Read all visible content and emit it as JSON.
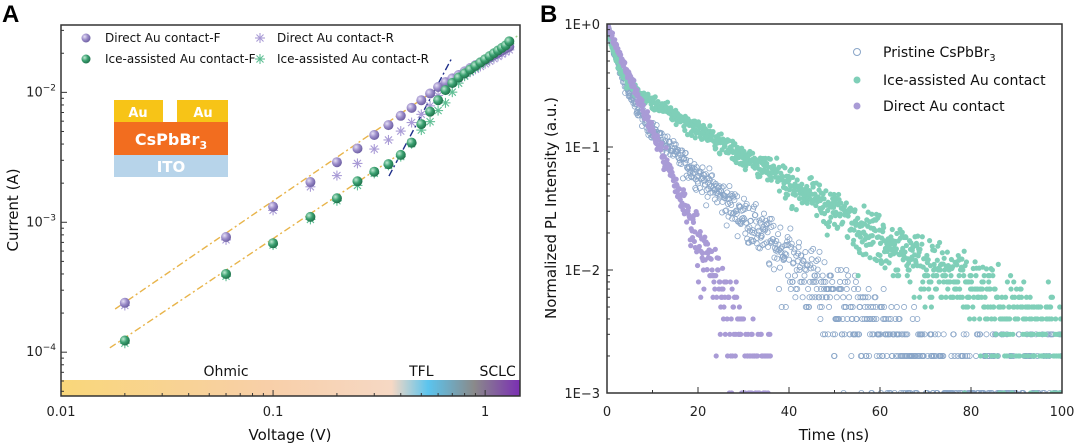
{
  "chart_data": [
    {
      "panel": "A",
      "type": "scatter",
      "xscale": "log",
      "yscale": "log",
      "xlabel": "Voltage (V)",
      "ylabel": "Current (A)",
      "xlim": [
        0.01,
        1.46
      ],
      "ylim": [
        4.6e-05,
        0.033
      ],
      "xticks": [
        {
          "v": 0.01,
          "label": "0.01"
        },
        {
          "v": 0.1,
          "label": "0.1"
        },
        {
          "v": 1,
          "label": "1"
        }
      ],
      "yticks": [
        {
          "v": 0.0001,
          "base": "10",
          "exp": "−4"
        },
        {
          "v": 0.001,
          "base": "10",
          "exp": "−3"
        },
        {
          "v": 0.01,
          "base": "10",
          "exp": "−2"
        }
      ],
      "legend": {
        "placement": "top-left",
        "entries": [
          {
            "label": "Direct Au contact-F",
            "marker": "sphere",
            "color": "#9b8cc9"
          },
          {
            "label": "Direct Au contact-R",
            "marker": "asterisk",
            "color": "#a99bd6"
          },
          {
            "label": "Ice-assisted Au contact-F",
            "marker": "sphere",
            "color": "#3aa070"
          },
          {
            "label": "Ice-assisted Au contact-R",
            "marker": "asterisk",
            "color": "#5fbf94"
          }
        ]
      },
      "series": [
        {
          "name": "Direct Au contact-F",
          "color": "#9b8cc9",
          "x": [
            0.02,
            0.06,
            0.1,
            0.15,
            0.2,
            0.25,
            0.3,
            0.35,
            0.4,
            0.45,
            0.5,
            0.55,
            0.6,
            0.65,
            0.7,
            0.75,
            0.8,
            0.85,
            0.9,
            0.95,
            1.0,
            1.05,
            1.1,
            1.15,
            1.2,
            1.25,
            1.3
          ],
          "y": [
            0.00024,
            0.00077,
            0.00132,
            0.00204,
            0.0029,
            0.0037,
            0.0047,
            0.0056,
            0.0066,
            0.0076,
            0.0087,
            0.0098,
            0.011,
            0.012,
            0.0128,
            0.0136,
            0.0145,
            0.0154,
            0.0162,
            0.017,
            0.0178,
            0.0186,
            0.0194,
            0.0202,
            0.021,
            0.0218,
            0.0225
          ]
        },
        {
          "name": "Direct Au contact-R",
          "color": "#a99bd6",
          "x": [
            0.02,
            0.06,
            0.1,
            0.15,
            0.2,
            0.25,
            0.3,
            0.35,
            0.4,
            0.45,
            0.5,
            0.55,
            0.6,
            0.65,
            0.7,
            0.75,
            0.8,
            0.85,
            0.9,
            0.95,
            1.0,
            1.05,
            1.1,
            1.15,
            1.2,
            1.25,
            1.3
          ],
          "y": [
            0.00025,
            0.0008,
            0.00135,
            0.00205,
            0.0025,
            0.0031,
            0.004,
            0.0047,
            0.0055,
            0.0064,
            0.0074,
            0.0086,
            0.0098,
            0.011,
            0.0122,
            0.0132,
            0.014,
            0.0148,
            0.0156,
            0.0164,
            0.0172,
            0.018,
            0.0188,
            0.0196,
            0.0204,
            0.0212,
            0.022
          ]
        },
        {
          "name": "Ice-assisted Au contact-F",
          "color": "#3aa070",
          "x": [
            0.02,
            0.06,
            0.1,
            0.15,
            0.2,
            0.25,
            0.3,
            0.35,
            0.4,
            0.45,
            0.5,
            0.55,
            0.6,
            0.65,
            0.7,
            0.75,
            0.8,
            0.85,
            0.9,
            0.95,
            1.0,
            1.05,
            1.1,
            1.15,
            1.2,
            1.25,
            1.3
          ],
          "y": [
            0.000123,
            0.0004,
            0.00069,
            0.0011,
            0.00153,
            0.00207,
            0.00245,
            0.0028,
            0.0033,
            0.0041,
            0.0057,
            0.0071,
            0.0087,
            0.0104,
            0.0118,
            0.013,
            0.014,
            0.015,
            0.016,
            0.017,
            0.018,
            0.019,
            0.02,
            0.021,
            0.022,
            0.023,
            0.0247
          ]
        },
        {
          "name": "Ice-assisted Au contact-R",
          "color": "#5fbf94",
          "x": [
            0.02,
            0.06,
            0.1,
            0.15,
            0.2,
            0.25,
            0.3,
            0.35,
            0.4,
            0.45,
            0.5,
            0.55,
            0.6,
            0.65,
            0.7,
            0.75,
            0.8,
            0.85,
            0.9,
            0.95,
            1.0,
            1.05,
            1.1,
            1.15,
            1.2,
            1.25,
            1.3
          ],
          "y": [
            0.000128,
            0.00042,
            0.00073,
            0.00115,
            0.0016,
            0.0021,
            0.0026,
            0.003,
            0.0035,
            0.0044,
            0.0056,
            0.0065,
            0.0075,
            0.0086,
            0.0104,
            0.0122,
            0.0138,
            0.015,
            0.016,
            0.017,
            0.018,
            0.019,
            0.02,
            0.021,
            0.022,
            0.023,
            0.0245
          ]
        }
      ],
      "fit_lines": [
        {
          "name": "ohmic-fit-direct",
          "color": "#e8b44a",
          "style": "dash-dot",
          "x": [
            0.018,
            0.62
          ],
          "y": [
            0.000215,
            0.0112
          ]
        },
        {
          "name": "ohmic-fit-ice",
          "color": "#e8b44a",
          "style": "dash-dot",
          "x": [
            0.017,
            0.4
          ],
          "y": [
            0.000108,
            0.0034
          ]
        },
        {
          "name": "tfl-fit",
          "color": "#1f2f8a",
          "style": "dash-dot",
          "x": [
            0.352,
            0.698
          ],
          "y": [
            0.00227,
            0.0185
          ]
        },
        {
          "name": "sclc-fit",
          "color": "#9fd48a",
          "style": "dotted",
          "x": [
            0.65,
            1.45
          ],
          "y": [
            0.0098,
            0.028
          ]
        }
      ],
      "regions": [
        {
          "label": "Ohmic",
          "x_center": 0.06
        },
        {
          "label": "TFL",
          "x_center": 0.5
        },
        {
          "label": "SCLC",
          "x_center": 1.05
        }
      ],
      "region_bar_colors": [
        "#f9d77a",
        "#f8d0b0",
        "#f6d8c4",
        "#5bc4ee",
        "#8a8a8a",
        "#7b2fb3"
      ],
      "inset": {
        "layers": [
          {
            "label": "Au",
            "role": "electrode-left",
            "color": "#f7c417"
          },
          {
            "label": "Au",
            "role": "electrode-right",
            "color": "#f7c417"
          },
          {
            "label": "CsPbBr",
            "sub": "3",
            "role": "perovskite",
            "color": "#f26d1f"
          },
          {
            "label": "ITO",
            "role": "substrate",
            "color": "#b7d4ea"
          }
        ]
      }
    },
    {
      "panel": "B",
      "type": "scatter",
      "xscale": "linear",
      "yscale": "log",
      "xlabel": "Time (ns)",
      "ylabel": "Normalized PL Intensity (a.u.)",
      "xlim": [
        0,
        100
      ],
      "ylim": [
        0.001,
        1
      ],
      "xticks": [
        {
          "v": 0,
          "label": "0"
        },
        {
          "v": 20,
          "label": "20"
        },
        {
          "v": 40,
          "label": "40"
        },
        {
          "v": 60,
          "label": "60"
        },
        {
          "v": 80,
          "label": "80"
        },
        {
          "v": 100,
          "label": "100"
        }
      ],
      "yticks": [
        {
          "v": 1,
          "label": "1E+0"
        },
        {
          "v": 0.1,
          "label": "1E−1"
        },
        {
          "v": 0.01,
          "label": "1E−2"
        },
        {
          "v": 0.001,
          "label": "1E−3"
        }
      ],
      "legend": {
        "placement": "top-right",
        "entries": [
          {
            "label": "Pristine CsPbBr",
            "sub": "3",
            "marker": "open-circle",
            "color": "#8aa6c8"
          },
          {
            "label": "Ice-assisted Au contact",
            "marker": "filled-circle",
            "color": "#7fcfb8"
          },
          {
            "label": "Direct Au contact",
            "marker": "filled-circle",
            "color": "#a99bd6"
          }
        ]
      },
      "series": [
        {
          "name": "Pristine CsPbBr3",
          "color": "#8aa6c8",
          "marker": "open-circle",
          "decay": {
            "a1": 0.72,
            "tau1": 2.2,
            "a2": 0.28,
            "tau2": 13.0
          },
          "noise_floor": 0.0015,
          "x_range": [
            0,
            100
          ]
        },
        {
          "name": "Ice-assisted Au contact",
          "color": "#7fcfb8",
          "marker": "filled-circle",
          "decay": {
            "a1": 0.62,
            "tau1": 1.6,
            "a2": 0.38,
            "tau2": 20.0
          },
          "noise_floor": 0.0013,
          "x_range": [
            0,
            100
          ]
        },
        {
          "name": "Direct Au contact",
          "color": "#a99bd6",
          "marker": "filled-circle",
          "decay": {
            "a1": 1.0,
            "tau1": 5.0,
            "a2": 0.0,
            "tau2": 1.0
          },
          "noise_floor": 0.001,
          "x_range": [
            0,
            36
          ]
        }
      ]
    }
  ],
  "panels": {
    "a_label": "A",
    "b_label": "B"
  }
}
